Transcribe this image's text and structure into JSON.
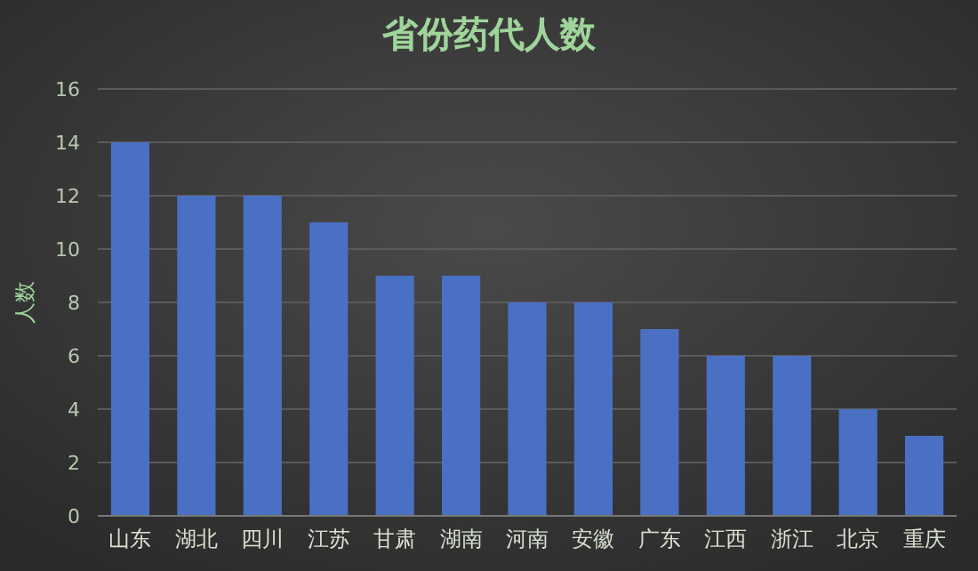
{
  "chart_data": {
    "type": "bar",
    "title": "省份药代人数",
    "ylabel": "人数",
    "categories": [
      "山东",
      "湖北",
      "四川",
      "江苏",
      "甘肃",
      "湖南",
      "河南",
      "安徽",
      "广东",
      "江西",
      "浙江",
      "北京",
      "重庆"
    ],
    "values": [
      14,
      12,
      12,
      11,
      9,
      9,
      8,
      8,
      7,
      6,
      6,
      4,
      3
    ],
    "color": "#4a70c4",
    "ylim": [
      0,
      16
    ],
    "yticks": [
      0,
      2,
      4,
      6,
      8,
      10,
      12,
      14,
      16
    ],
    "grid": "y"
  }
}
